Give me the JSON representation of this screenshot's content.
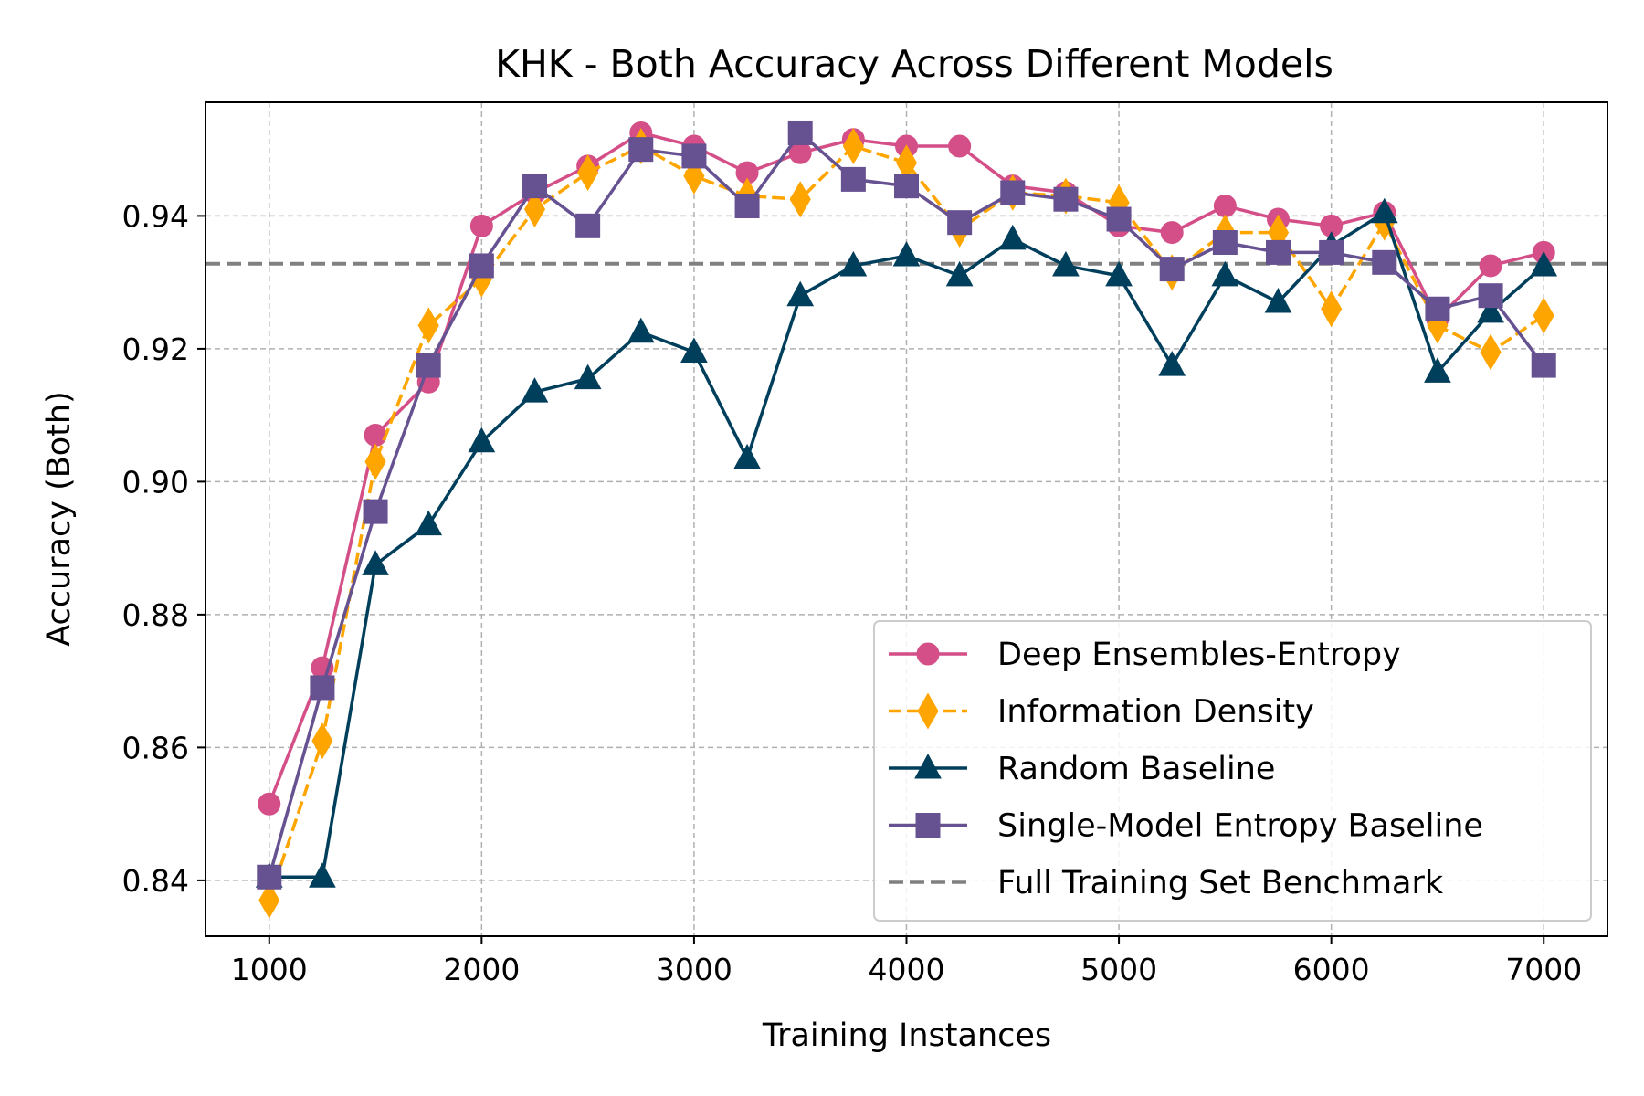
{
  "chart_data": {
    "type": "line",
    "title": "KHK - Both Accuracy Across Different Models",
    "xlabel": "Training Instances",
    "ylabel": "Accuracy (Both)",
    "xlim": [
      700,
      7300
    ],
    "ylim": [
      0.8316,
      0.9571
    ],
    "xticks": [
      1000,
      2000,
      3000,
      4000,
      5000,
      6000,
      7000
    ],
    "xtick_labels": [
      "1000",
      "2000",
      "3000",
      "4000",
      "5000",
      "6000",
      "7000"
    ],
    "yticks": [
      0.84,
      0.86,
      0.88,
      0.9,
      0.92,
      0.94
    ],
    "ytick_labels": [
      "0.84",
      "0.86",
      "0.88",
      "0.90",
      "0.92",
      "0.94"
    ],
    "grid": true,
    "legend_position": "lower-right",
    "x": [
      1000,
      1250,
      1500,
      1750,
      2000,
      2250,
      2500,
      2750,
      3000,
      3250,
      3500,
      3750,
      4000,
      4250,
      4500,
      4750,
      5000,
      5250,
      5500,
      5750,
      6000,
      6250,
      6500,
      6750,
      7000
    ],
    "series": [
      {
        "name": "Deep Ensembles-Entropy",
        "color": "#d44f87",
        "marker": "circle",
        "linestyle": "solid",
        "values": [
          0.8515,
          0.872,
          0.907,
          0.915,
          0.9385,
          0.9435,
          0.9475,
          0.9525,
          0.9505,
          0.9465,
          0.9495,
          0.9515,
          0.9505,
          0.9505,
          0.9445,
          0.9435,
          0.9385,
          0.9375,
          0.9415,
          0.9395,
          0.9385,
          0.9405,
          0.9245,
          0.9325,
          0.9345
        ]
      },
      {
        "name": "Information Density",
        "color": "#ffa500",
        "marker": "diamond",
        "linestyle": "dashed",
        "values": [
          0.837,
          0.861,
          0.903,
          0.9235,
          0.9305,
          0.941,
          0.9465,
          0.9505,
          0.946,
          0.943,
          0.9425,
          0.9505,
          0.948,
          0.938,
          0.9435,
          0.943,
          0.942,
          0.9315,
          0.9375,
          0.9375,
          0.926,
          0.939,
          0.9235,
          0.9195,
          0.925
        ]
      },
      {
        "name": "Random Baseline",
        "color": "#003f5c",
        "marker": "triangle",
        "linestyle": "solid",
        "values": [
          0.8405,
          0.8405,
          0.8875,
          0.8935,
          0.906,
          0.9135,
          0.9155,
          0.9225,
          0.9195,
          0.9035,
          0.928,
          0.9325,
          0.934,
          0.931,
          0.9365,
          0.9325,
          0.931,
          0.9175,
          0.931,
          0.927,
          0.9355,
          0.9405,
          0.9165,
          0.9255,
          0.9325
        ]
      },
      {
        "name": "Single-Model Entropy Baseline",
        "color": "#665191",
        "marker": "square",
        "linestyle": "solid",
        "values": [
          0.8405,
          0.869,
          0.8955,
          0.9175,
          0.9325,
          0.9445,
          0.9385,
          0.95,
          0.949,
          0.9415,
          0.9525,
          0.9455,
          0.9445,
          0.939,
          0.9435,
          0.9425,
          0.9395,
          0.932,
          0.936,
          0.9345,
          0.9345,
          0.933,
          0.926,
          0.928,
          0.9175
        ]
      }
    ],
    "benchmark": {
      "name": "Full Training Set Benchmark",
      "color": "#808080",
      "linestyle": "dashed",
      "value": 0.9328
    }
  }
}
